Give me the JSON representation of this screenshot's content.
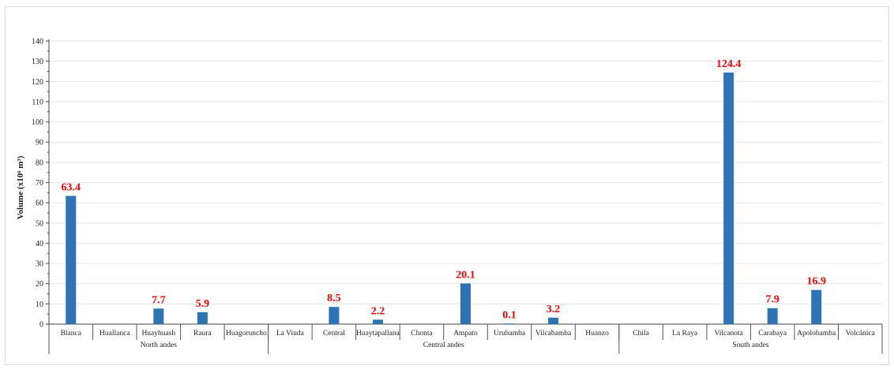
{
  "chart_data": {
    "type": "bar",
    "title": "",
    "ylabel": "Volume (x10⁶ m³)",
    "ylim": [
      0,
      140
    ],
    "yticks": [
      0,
      10,
      20,
      30,
      40,
      50,
      60,
      70,
      80,
      90,
      100,
      110,
      120,
      130,
      140
    ],
    "grid": true,
    "bar_color": "#2e74b5",
    "label_color": "#ff0000",
    "categories": [
      "Blanca",
      "Huallanca",
      "Huayhuash",
      "Raura",
      "Huagoruncho",
      "La Viuda",
      "Central",
      "Huaytapallana",
      "Chonta",
      "Ampato",
      "Urubamba",
      "Vilcabamba",
      "Huanzo",
      "Chila",
      "La Raya",
      "Vilcanota",
      "Carabaya",
      "Apolobamba",
      "Volcánica"
    ],
    "values": [
      63.4,
      null,
      7.7,
      5.9,
      null,
      null,
      8.5,
      2.2,
      null,
      20.1,
      0.1,
      3.2,
      null,
      null,
      null,
      124.4,
      7.9,
      16.9,
      null
    ],
    "data_labels": [
      "63.4",
      "",
      "7.7",
      "5.9",
      "",
      "",
      "8.5",
      "2.2",
      "",
      "20.1",
      "0.1",
      "3.2",
      "",
      "",
      "",
      "124.4",
      "7.9",
      "16.9",
      ""
    ],
    "groups": [
      {
        "name": "North andes",
        "start": 0,
        "end": 4
      },
      {
        "name": "Central andes",
        "start": 5,
        "end": 12
      },
      {
        "name": "South andes",
        "start": 13,
        "end": 18
      }
    ]
  }
}
